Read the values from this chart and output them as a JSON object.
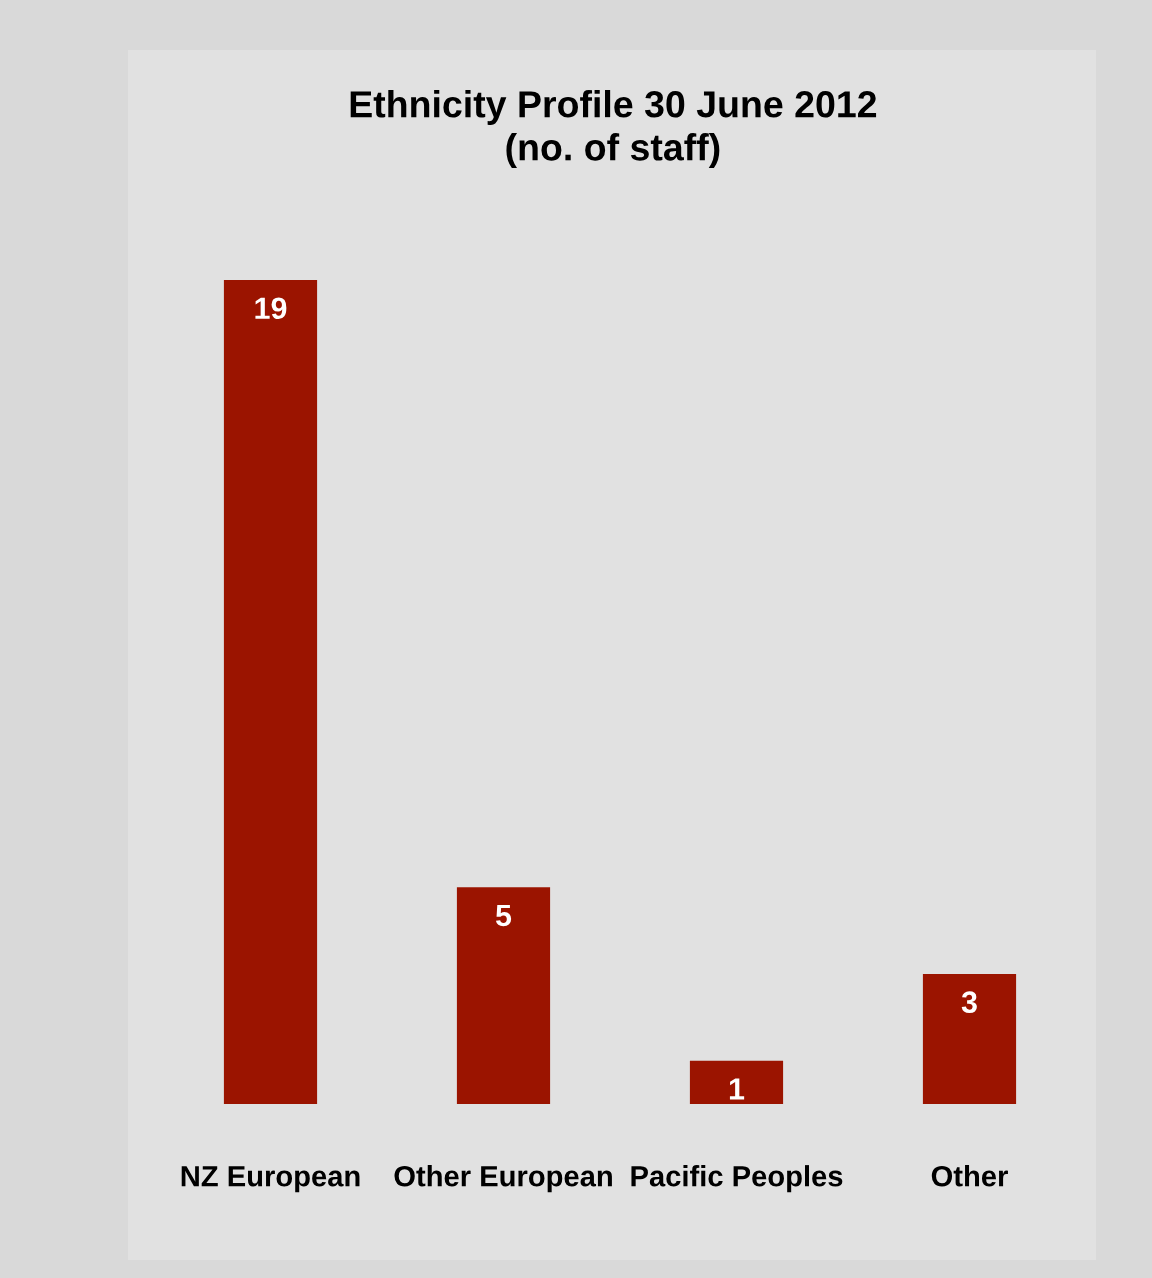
{
  "chart_data": {
    "type": "bar",
    "title": "Ethnicity Profile 30 June 2012\n(no. of staff)",
    "categories": [
      "NZ European",
      "Other European",
      "Pacific Peoples",
      "Other"
    ],
    "values": [
      19,
      5,
      1,
      3
    ],
    "color": "#9b1400",
    "data_labels": true,
    "grid": false,
    "legend": false
  }
}
